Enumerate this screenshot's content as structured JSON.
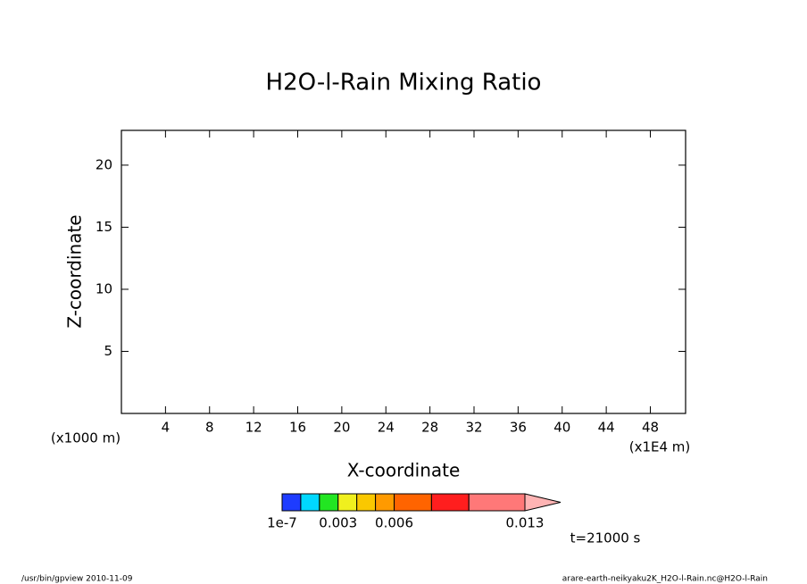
{
  "chart_data": {
    "type": "contour",
    "title": "H2O-l-Rain Mixing Ratio",
    "xlabel": "X-coordinate",
    "ylabel": "Z-coordinate",
    "x_unit": "(x1E4 m)",
    "y_unit": "(x1000 m)",
    "xlim": [
      0,
      51.2
    ],
    "xticks": [
      4,
      8,
      12,
      16,
      20,
      24,
      28,
      32,
      36,
      40,
      44,
      48
    ],
    "ylim": [
      0,
      22.8
    ],
    "yticks": [
      5,
      10,
      15,
      20
    ],
    "colorbar": {
      "levels": [
        1e-07,
        0.001,
        0.002,
        0.003,
        0.004,
        0.005,
        0.006,
        0.008,
        0.01,
        0.013
      ],
      "colors": [
        "#1e3cff",
        "#00d8ff",
        "#22e622",
        "#f0f01e",
        "#fac800",
        "#ff9a00",
        "#ff6400",
        "#ff1e1e",
        "#ff7878",
        "#ffb4b4"
      ],
      "ticks": [
        1e-07,
        0.003,
        0.006,
        0.013
      ]
    },
    "annotation": "t=21000 s",
    "footer_left": "/usr/bin/gpview  2010-11-09",
    "footer_right": "arare-earth-neikyaku2K_H2O-l-Rain.nc@H2O-l-Rain"
  }
}
